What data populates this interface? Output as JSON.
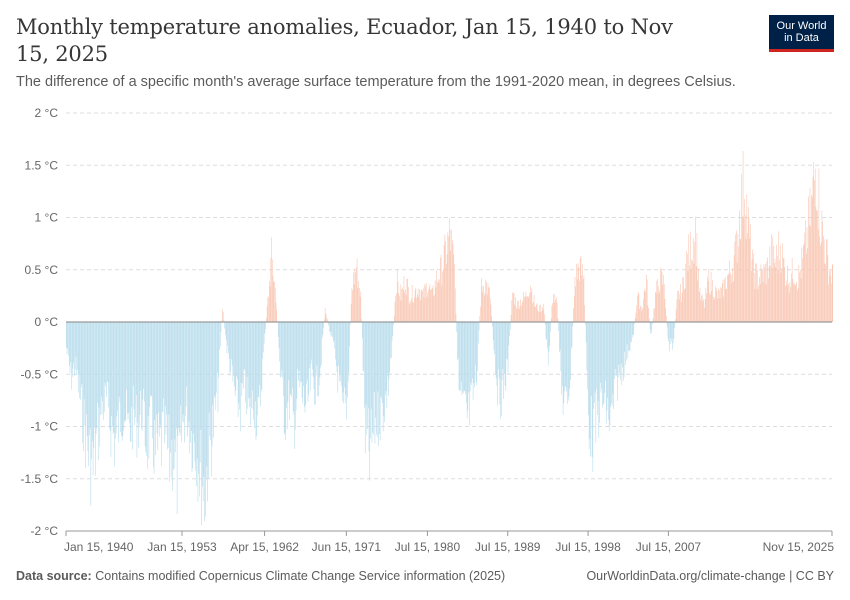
{
  "header": {
    "title": "Monthly temperature anomalies, Ecuador, Jan 15, 1940 to Nov 15, 2025",
    "subtitle": "The difference of a specific month's average surface temperature from the 1991-2020 mean, in degrees Celsius."
  },
  "logo": {
    "line1": "Our World",
    "line2": "in Data"
  },
  "footer": {
    "source_label": "Data source:",
    "source_text": "Contains modified Copernicus Climate Change Service information (2025)",
    "credit": "OurWorldinData.org/climate-change | CC BY"
  },
  "colors": {
    "positive": "#f9c6b2",
    "negative": "#b7dcec",
    "zero_line": "#9a9a9a",
    "grid": "#dddddd"
  },
  "chart_data": {
    "type": "bar",
    "title": "Monthly temperature anomalies, Ecuador, Jan 15, 1940 to Nov 15, 2025",
    "unit": "°C",
    "x_start": "1940-01-15",
    "x_end": "2025-11-15",
    "ylim": [
      -2,
      2
    ],
    "yticks": [
      {
        "value": 2,
        "label": "2 °C"
      },
      {
        "value": 1.5,
        "label": "1.5 °C"
      },
      {
        "value": 1,
        "label": "1 °C"
      },
      {
        "value": 0.5,
        "label": "0.5 °C"
      },
      {
        "value": 0,
        "label": "0 °C"
      },
      {
        "value": -0.5,
        "label": "-0.5 °C"
      },
      {
        "value": -1,
        "label": "-1 °C"
      },
      {
        "value": -1.5,
        "label": "-1.5 °C"
      },
      {
        "value": -2,
        "label": "-2 °C"
      }
    ],
    "xticks": [
      {
        "date": "1940-01",
        "label": "Jan 15, 1940"
      },
      {
        "date": "1953-01",
        "label": "Jan 15, 1953"
      },
      {
        "date": "1962-04",
        "label": "Apr 15, 1962"
      },
      {
        "date": "1971-06",
        "label": "Jun 15, 1971"
      },
      {
        "date": "1980-07",
        "label": "Jul 15, 1980"
      },
      {
        "date": "1989-07",
        "label": "Jul 15, 1989"
      },
      {
        "date": "1998-07",
        "label": "Jul 15, 1998"
      },
      {
        "date": "2007-07",
        "label": "Jul 15, 2007"
      },
      {
        "date": "2025-11",
        "label": "Nov 15, 2025"
      }
    ],
    "grid": true,
    "legend": "none",
    "series": [
      {
        "values": [
          {
            "date": "1940-01",
            "value": -0.3
          },
          {
            "date": "1940-07",
            "value": -0.65
          },
          {
            "date": "1941-01",
            "value": -0.5
          },
          {
            "date": "1941-07",
            "value": -0.85
          },
          {
            "date": "1942-01",
            "value": -1.2
          },
          {
            "date": "1942-07",
            "value": -1.5
          },
          {
            "date": "1943-01",
            "value": -1.72
          },
          {
            "date": "1943-07",
            "value": -1.3
          },
          {
            "date": "1944-01",
            "value": -1.0
          },
          {
            "date": "1944-07",
            "value": -0.9
          },
          {
            "date": "1945-01",
            "value": -1.2
          },
          {
            "date": "1945-07",
            "value": -1.4
          },
          {
            "date": "1946-01",
            "value": -1.1
          },
          {
            "date": "1946-07",
            "value": -1.0
          },
          {
            "date": "1947-01",
            "value": -1.3
          },
          {
            "date": "1947-07",
            "value": -1.1
          },
          {
            "date": "1948-01",
            "value": -1.2
          },
          {
            "date": "1948-07",
            "value": -1.0
          },
          {
            "date": "1949-01",
            "value": -1.4
          },
          {
            "date": "1949-07",
            "value": -1.2
          },
          {
            "date": "1950-01",
            "value": -1.55
          },
          {
            "date": "1950-07",
            "value": -1.45
          },
          {
            "date": "1951-01",
            "value": -1.3
          },
          {
            "date": "1951-07",
            "value": -1.6
          },
          {
            "date": "1952-01",
            "value": -1.5
          },
          {
            "date": "1952-07",
            "value": -1.83
          },
          {
            "date": "1953-01",
            "value": -1.2
          },
          {
            "date": "1953-07",
            "value": -1.0
          },
          {
            "date": "1954-01",
            "value": -1.3
          },
          {
            "date": "1954-07",
            "value": -1.45
          },
          {
            "date": "1955-01",
            "value": -1.7
          },
          {
            "date": "1955-07",
            "value": -1.98
          },
          {
            "date": "1956-01",
            "value": -1.5
          },
          {
            "date": "1956-07",
            "value": -1.2
          },
          {
            "date": "1957-01",
            "value": -0.8
          },
          {
            "date": "1957-07",
            "value": 0.18
          },
          {
            "date": "1958-01",
            "value": -0.3
          },
          {
            "date": "1958-07",
            "value": -0.6
          },
          {
            "date": "1959-01",
            "value": -0.9
          },
          {
            "date": "1959-07",
            "value": -1.0
          },
          {
            "date": "1960-01",
            "value": -0.75
          },
          {
            "date": "1960-07",
            "value": -1.1
          },
          {
            "date": "1961-01",
            "value": -0.9
          },
          {
            "date": "1961-07",
            "value": -1.2
          },
          {
            "date": "1962-01",
            "value": -0.5
          },
          {
            "date": "1962-07",
            "value": 0.15
          },
          {
            "date": "1963-01",
            "value": 0.75
          },
          {
            "date": "1963-07",
            "value": 0.3
          },
          {
            "date": "1964-01",
            "value": -0.6
          },
          {
            "date": "1964-07",
            "value": -1.1
          },
          {
            "date": "1965-01",
            "value": -0.9
          },
          {
            "date": "1965-07",
            "value": -1.2
          },
          {
            "date": "1966-01",
            "value": -0.7
          },
          {
            "date": "1966-07",
            "value": -0.9
          },
          {
            "date": "1967-01",
            "value": -1.0
          },
          {
            "date": "1967-07",
            "value": -0.6
          },
          {
            "date": "1968-01",
            "value": -0.8
          },
          {
            "date": "1968-07",
            "value": -0.5
          },
          {
            "date": "1969-01",
            "value": 0.15
          },
          {
            "date": "1969-07",
            "value": -0.1
          },
          {
            "date": "1970-01",
            "value": -0.3
          },
          {
            "date": "1970-07",
            "value": -0.7
          },
          {
            "date": "1971-01",
            "value": -1.1
          },
          {
            "date": "1971-07",
            "value": -0.9
          },
          {
            "date": "1972-01",
            "value": 0.4
          },
          {
            "date": "1972-07",
            "value": 0.65
          },
          {
            "date": "1973-01",
            "value": 0.3
          },
          {
            "date": "1973-07",
            "value": -1.3
          },
          {
            "date": "1974-01",
            "value": -1.6
          },
          {
            "date": "1974-07",
            "value": -1.2
          },
          {
            "date": "1975-01",
            "value": -1.1
          },
          {
            "date": "1975-07",
            "value": -1.0
          },
          {
            "date": "1976-01",
            "value": -0.8
          },
          {
            "date": "1976-07",
            "value": -0.3
          },
          {
            "date": "1977-01",
            "value": 0.5
          },
          {
            "date": "1977-07",
            "value": 0.3
          },
          {
            "date": "1978-01",
            "value": 0.5
          },
          {
            "date": "1978-07",
            "value": 0.3
          },
          {
            "date": "1979-01",
            "value": 0.35
          },
          {
            "date": "1979-07",
            "value": 0.4
          },
          {
            "date": "1980-01",
            "value": 0.3
          },
          {
            "date": "1980-07",
            "value": 0.45
          },
          {
            "date": "1981-01",
            "value": 0.3
          },
          {
            "date": "1981-07",
            "value": 0.5
          },
          {
            "date": "1982-01",
            "value": 0.6
          },
          {
            "date": "1982-07",
            "value": 0.8
          },
          {
            "date": "1983-01",
            "value": 1.03
          },
          {
            "date": "1983-07",
            "value": 0.6
          },
          {
            "date": "1984-01",
            "value": -0.8
          },
          {
            "date": "1984-07",
            "value": -1.0
          },
          {
            "date": "1985-01",
            "value": -1.15
          },
          {
            "date": "1985-07",
            "value": -0.9
          },
          {
            "date": "1986-01",
            "value": -0.6
          },
          {
            "date": "1986-07",
            "value": 0.4
          },
          {
            "date": "1987-01",
            "value": 0.45
          },
          {
            "date": "1987-07",
            "value": 0.3
          },
          {
            "date": "1988-01",
            "value": -0.4
          },
          {
            "date": "1988-07",
            "value": -0.9
          },
          {
            "date": "1989-01",
            "value": -0.75
          },
          {
            "date": "1989-07",
            "value": -0.5
          },
          {
            "date": "1990-01",
            "value": 0.35
          },
          {
            "date": "1990-07",
            "value": 0.2
          },
          {
            "date": "1991-01",
            "value": 0.25
          },
          {
            "date": "1991-07",
            "value": 0.3
          },
          {
            "date": "1992-01",
            "value": 0.45
          },
          {
            "date": "1992-07",
            "value": 0.2
          },
          {
            "date": "1993-01",
            "value": 0.15
          },
          {
            "date": "1993-07",
            "value": 0.2
          },
          {
            "date": "1994-01",
            "value": -0.5
          },
          {
            "date": "1994-07",
            "value": 0.3
          },
          {
            "date": "1995-01",
            "value": 0.2
          },
          {
            "date": "1995-07",
            "value": -0.8
          },
          {
            "date": "1996-01",
            "value": -1.0
          },
          {
            "date": "1996-07",
            "value": -0.6
          },
          {
            "date": "1997-01",
            "value": 0.5
          },
          {
            "date": "1997-07",
            "value": 0.65
          },
          {
            "date": "1998-01",
            "value": 0.5
          },
          {
            "date": "1998-07",
            "value": -1.1
          },
          {
            "date": "1999-01",
            "value": -1.32
          },
          {
            "date": "1999-07",
            "value": -1.1
          },
          {
            "date": "2000-01",
            "value": -0.9
          },
          {
            "date": "2000-07",
            "value": -1.0
          },
          {
            "date": "2001-01",
            "value": -1.2
          },
          {
            "date": "2001-07",
            "value": -0.8
          },
          {
            "date": "2002-01",
            "value": -0.6
          },
          {
            "date": "2002-07",
            "value": -0.5
          },
          {
            "date": "2003-01",
            "value": -0.3
          },
          {
            "date": "2003-07",
            "value": -0.2
          },
          {
            "date": "2004-01",
            "value": 0.3
          },
          {
            "date": "2004-07",
            "value": 0.15
          },
          {
            "date": "2005-01",
            "value": 0.5
          },
          {
            "date": "2005-07",
            "value": -0.2
          },
          {
            "date": "2006-01",
            "value": 0.3
          },
          {
            "date": "2006-07",
            "value": 0.5
          },
          {
            "date": "2007-01",
            "value": 0.45
          },
          {
            "date": "2007-07",
            "value": -0.3
          },
          {
            "date": "2008-01",
            "value": -0.25
          },
          {
            "date": "2008-07",
            "value": 0.3
          },
          {
            "date": "2009-01",
            "value": 0.35
          },
          {
            "date": "2009-07",
            "value": 0.7
          },
          {
            "date": "2010-01",
            "value": 0.85
          },
          {
            "date": "2010-07",
            "value": 1.08
          },
          {
            "date": "2011-01",
            "value": 0.3
          },
          {
            "date": "2011-07",
            "value": 0.2
          },
          {
            "date": "2012-01",
            "value": 0.5
          },
          {
            "date": "2012-07",
            "value": 0.4
          },
          {
            "date": "2013-01",
            "value": 0.3
          },
          {
            "date": "2013-07",
            "value": 0.35
          },
          {
            "date": "2014-01",
            "value": 0.5
          },
          {
            "date": "2014-07",
            "value": 0.6
          },
          {
            "date": "2015-01",
            "value": 0.8
          },
          {
            "date": "2015-07",
            "value": 1.3
          },
          {
            "date": "2016-01",
            "value": 1.65
          },
          {
            "date": "2016-07",
            "value": 1.0
          },
          {
            "date": "2017-01",
            "value": 0.6
          },
          {
            "date": "2017-07",
            "value": 0.5
          },
          {
            "date": "2018-01",
            "value": 0.55
          },
          {
            "date": "2018-07",
            "value": 0.6
          },
          {
            "date": "2019-01",
            "value": 0.8
          },
          {
            "date": "2019-07",
            "value": 0.7
          },
          {
            "date": "2020-01",
            "value": 0.9
          },
          {
            "date": "2020-07",
            "value": 0.6
          },
          {
            "date": "2021-01",
            "value": 0.5
          },
          {
            "date": "2021-07",
            "value": 0.6
          },
          {
            "date": "2022-01",
            "value": 0.5
          },
          {
            "date": "2022-07",
            "value": 0.7
          },
          {
            "date": "2023-01",
            "value": 1.0
          },
          {
            "date": "2023-07",
            "value": 1.3
          },
          {
            "date": "2024-01",
            "value": 1.86
          },
          {
            "date": "2024-07",
            "value": 1.2
          },
          {
            "date": "2025-01",
            "value": 0.9
          },
          {
            "date": "2025-07",
            "value": 0.6
          },
          {
            "date": "2025-11",
            "value": 0.55
          }
        ]
      }
    ]
  }
}
